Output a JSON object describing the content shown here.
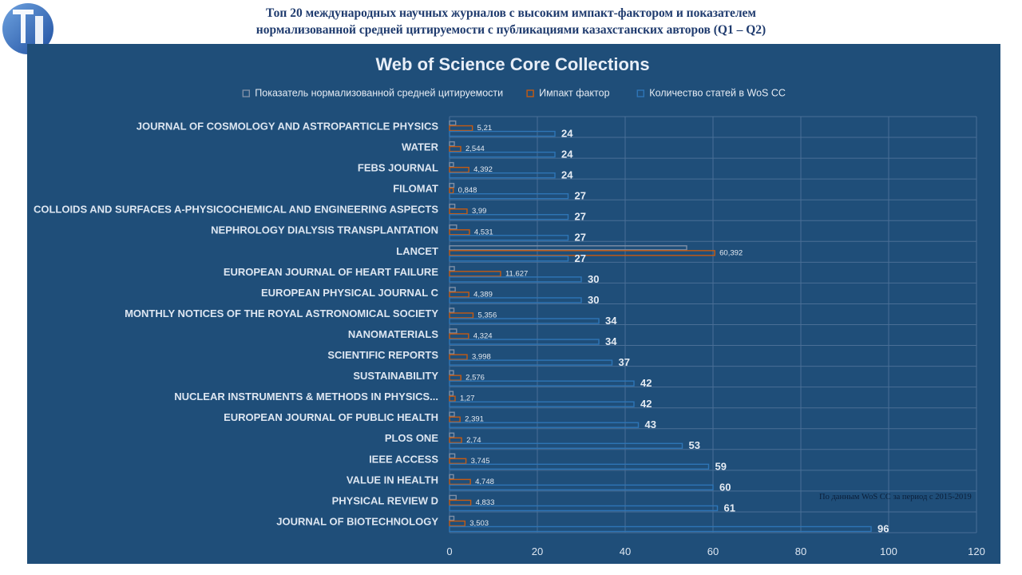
{
  "page": {
    "title_line1": "Топ 20 международных научных журналов с высоким импакт-фактором и показателем",
    "title_line2": "нормализованной средней цитируемости с публикациями казахстанских авторов (Q1 – Q2)",
    "source_note": "По данным  WoS CC за период с 2015-2019"
  },
  "colors": {
    "panel": "#1f4e79",
    "citation": "#7f8fa6",
    "impact": "#c55a11",
    "articles": "#2e75b6",
    "grid": "#4a6f96"
  },
  "chart_data": {
    "type": "bar",
    "orientation": "horizontal",
    "title": "Web of Science Core Collections",
    "legend_position": "top",
    "grid": true,
    "xlim": [
      0,
      120
    ],
    "ticks": [
      0,
      20,
      40,
      60,
      80,
      100,
      120
    ],
    "categories": [
      "JOURNAL OF COSMOLOGY AND ASTROPARTICLE PHYSICS",
      "WATER",
      "FEBS JOURNAL",
      "FILOMAT",
      "COLLOIDS AND SURFACES A-PHYSICOCHEMICAL AND ENGINEERING ASPECTS",
      "NEPHROLOGY DIALYSIS TRANSPLANTATION",
      "LANCET",
      "EUROPEAN JOURNAL OF HEART FAILURE",
      "EUROPEAN PHYSICAL JOURNAL C",
      "MONTHLY NOTICES OF THE ROYAL ASTRONOMICAL SOCIETY",
      "NANOMATERIALS",
      "SCIENTIFIC REPORTS",
      "SUSTAINABILITY",
      "NUCLEAR INSTRUMENTS & METHODS IN PHYSICS...",
      "EUROPEAN JOURNAL OF PUBLIC HEALTH",
      "PLOS ONE",
      "IEEE ACCESS",
      "VALUE IN HEALTH",
      "PHYSICAL REVIEW D",
      "JOURNAL OF BIOTECHNOLOGY"
    ],
    "series": [
      {
        "name": "Показатель нормализованной средней цитируемости",
        "values": [
          1.4,
          1.1,
          0.9,
          1.0,
          1.2,
          1.6,
          54,
          1.1,
          1.3,
          1.0,
          1.6,
          1.0,
          0.9,
          0.8,
          1.1,
          1.0,
          1.2,
          0.9,
          1.5,
          1.0
        ],
        "labels": []
      },
      {
        "name": "Импакт фактор",
        "values": [
          5.21,
          2.544,
          4.392,
          0.848,
          3.99,
          4.531,
          60.392,
          11.627,
          4.389,
          5.356,
          4.324,
          3.998,
          2.576,
          1.27,
          2.391,
          2.74,
          3.745,
          4.748,
          4.833,
          3.503
        ],
        "labels": [
          "5,21",
          "2,544",
          "4,392",
          "0,848",
          "3,99",
          "4,531",
          "60,392",
          "11,627",
          "4,389",
          "5,356",
          "4,324",
          "3,998",
          "2,576",
          "1,27",
          "2,391",
          "2,74",
          "3,745",
          "4,748",
          "4,833",
          "3,503"
        ]
      },
      {
        "name": "Количество статей в WoS CC",
        "values": [
          24,
          24,
          24,
          27,
          27,
          27,
          27,
          30,
          30,
          34,
          34,
          37,
          42,
          42,
          43,
          53,
          59,
          60,
          61,
          96
        ],
        "labels": [
          "24",
          "24",
          "24",
          "27",
          "27",
          "27",
          "27",
          "30",
          "30",
          "34",
          "34",
          "37",
          "42",
          "42",
          "43",
          "53",
          "59",
          "60",
          "61",
          "96"
        ]
      }
    ]
  }
}
